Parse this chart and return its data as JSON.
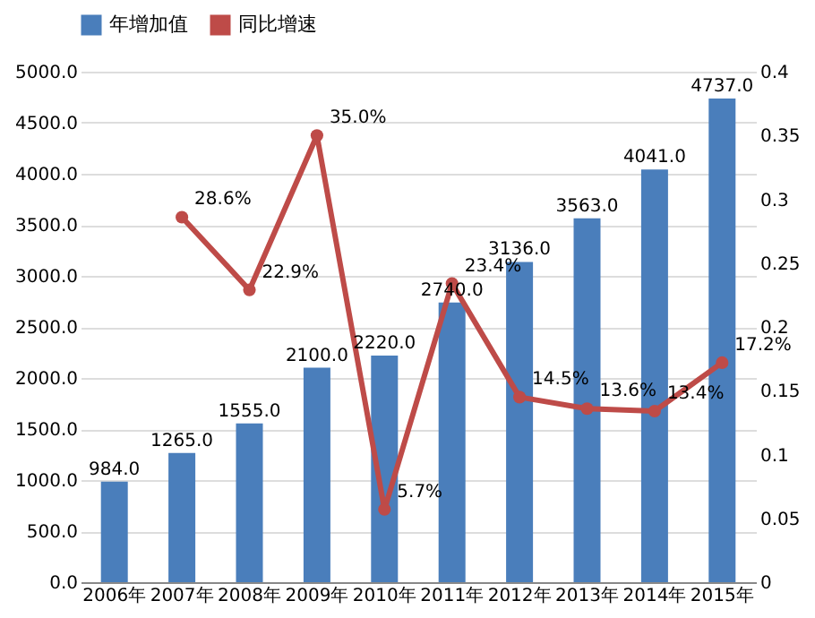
{
  "chart_data": {
    "type": "bar",
    "categories": [
      "2006年",
      "2007年",
      "2008年",
      "2009年",
      "2010年",
      "2011年",
      "2012年",
      "2013年",
      "2014年",
      "2015年"
    ],
    "series": [
      {
        "name": "年增加值",
        "color": "#4a7ebb",
        "values": [
          984,
          1265,
          1555,
          2100,
          2220,
          2740,
          3136,
          3563,
          4041,
          4737
        ],
        "value_labels": [
          "984.0",
          "1265.0",
          "1555.0",
          "2100.0",
          "2220.0",
          "2740.0",
          "3136.0",
          "3563.0",
          "4041.0",
          "4737.0"
        ]
      },
      {
        "name": "同比增速",
        "color": "#be4b48",
        "type": "line",
        "axis": "y2",
        "marker": "circle",
        "values": [
          null,
          0.286,
          0.229,
          0.35,
          0.057,
          0.234,
          0.145,
          0.136,
          0.134,
          0.172
        ],
        "value_labels": [
          null,
          "28.6%",
          "22.9%",
          "35.0%",
          "5.7%",
          "23.4%",
          "14.5%",
          "13.6%",
          "13.4%",
          "17.2%"
        ]
      }
    ],
    "ylim": [
      0,
      5000
    ],
    "yticks": [
      {
        "value": 0,
        "label": "0.0"
      },
      {
        "value": 500,
        "label": "500.0"
      },
      {
        "value": 1000,
        "label": "1000.0"
      },
      {
        "value": 1500,
        "label": "1500.0"
      },
      {
        "value": 2000,
        "label": "2000.0"
      },
      {
        "value": 2500,
        "label": "2500.0"
      },
      {
        "value": 3000,
        "label": "3000.0"
      },
      {
        "value": 3500,
        "label": "3500.0"
      },
      {
        "value": 4000,
        "label": "4000.0"
      },
      {
        "value": 4500,
        "label": "4500.0"
      },
      {
        "value": 5000,
        "label": "5000.0"
      }
    ],
    "y2lim": [
      0,
      0.4
    ],
    "y2ticks": [
      0,
      0.05,
      0.1,
      0.15,
      0.2,
      0.25,
      0.3,
      0.35,
      0.4
    ],
    "grid": "y",
    "legend": "top"
  }
}
